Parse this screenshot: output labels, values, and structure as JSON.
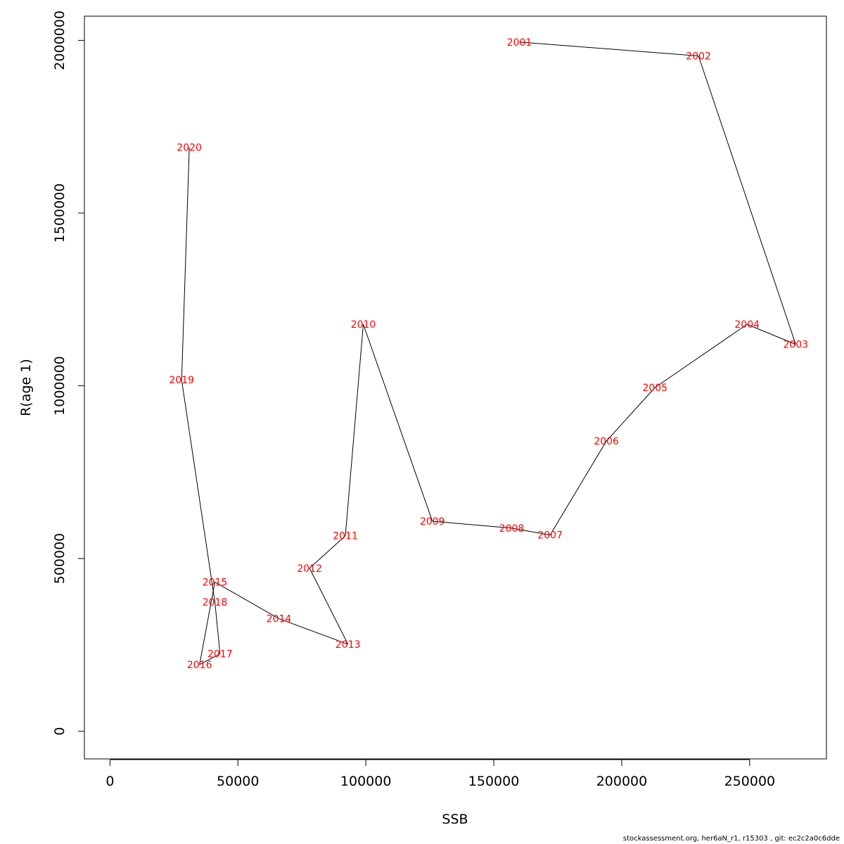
{
  "chart_data": {
    "type": "line",
    "title": "",
    "xlabel": "SSB",
    "ylabel": "R(age 1)",
    "xlim": [
      -10000,
      280000
    ],
    "ylim": [
      -80000,
      2070000
    ],
    "xticks": [
      0,
      50000,
      100000,
      150000,
      200000,
      250000
    ],
    "xtick_labels": [
      "0",
      "50000",
      "100000",
      "150000",
      "200000",
      "250000"
    ],
    "yticks": [
      0,
      500000,
      1000000,
      1500000,
      2000000
    ],
    "ytick_labels": [
      "0",
      "500000",
      "1000000",
      "1500000",
      "2000000"
    ],
    "grid": false,
    "line_color": "#000000",
    "label_color": "#ff0000",
    "points": [
      {
        "label": "2001",
        "x": 160000,
        "y": 1995000
      },
      {
        "label": "2002",
        "x": 230000,
        "y": 1955000
      },
      {
        "label": "2003",
        "x": 268000,
        "y": 1120000
      },
      {
        "label": "2004",
        "x": 249000,
        "y": 1178000
      },
      {
        "label": "2005",
        "x": 213000,
        "y": 995000
      },
      {
        "label": "2006",
        "x": 194000,
        "y": 840000
      },
      {
        "label": "2007",
        "x": 172000,
        "y": 568000
      },
      {
        "label": "2008",
        "x": 157000,
        "y": 588000
      },
      {
        "label": "2009",
        "x": 126000,
        "y": 608000
      },
      {
        "label": "2010",
        "x": 99000,
        "y": 1178000
      },
      {
        "label": "2011",
        "x": 92000,
        "y": 566000
      },
      {
        "label": "2012",
        "x": 78000,
        "y": 472000
      },
      {
        "label": "2013",
        "x": 93000,
        "y": 252000
      },
      {
        "label": "2014",
        "x": 66000,
        "y": 326000
      },
      {
        "label": "2015",
        "x": 41000,
        "y": 432000
      },
      {
        "label": "2016",
        "x": 35000,
        "y": 193000
      },
      {
        "label": "2017",
        "x": 43000,
        "y": 224000
      },
      {
        "label": "2018",
        "x": 41000,
        "y": 374000
      },
      {
        "label": "2019",
        "x": 28000,
        "y": 1017000
      },
      {
        "label": "2020",
        "x": 31000,
        "y": 1690000
      }
    ]
  },
  "footer": {
    "text": "stockassessment.org, her6aN_r1, r15303 , git: ec2c2a0c6dde"
  }
}
